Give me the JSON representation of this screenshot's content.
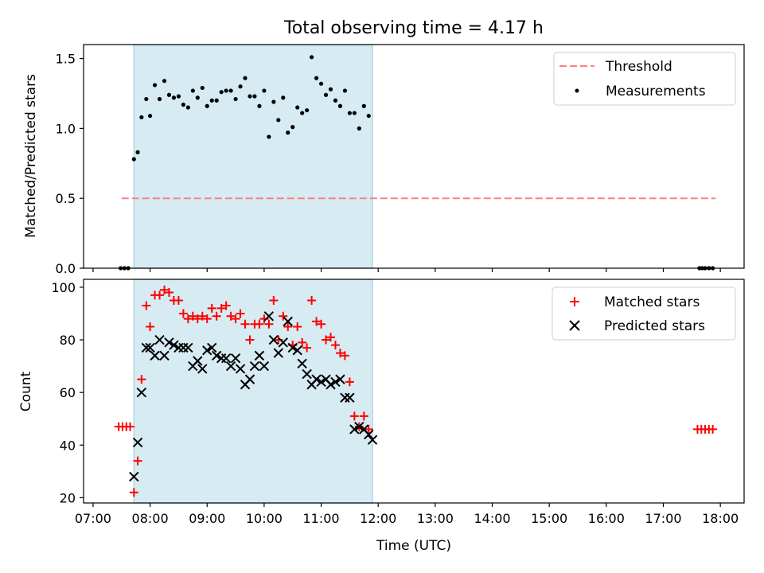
{
  "figure_title": "Total observing time = 4.17 h",
  "chart_data": [
    {
      "type": "scatter",
      "panel": "top",
      "xlim": [
        "06:50",
        "18:25"
      ],
      "ylim": [
        0,
        1.6
      ],
      "ylabel": "Matched/Predicted stars",
      "yticks": [
        "0.0",
        "0.5",
        "1.0",
        "1.5"
      ],
      "yticks_values": [
        0,
        0.5,
        1.0,
        1.5
      ],
      "shaded_region": {
        "start": "07:43",
        "end": "11:54",
        "color": "#add8e6"
      },
      "legend_position": "top-right",
      "threshold": {
        "name": "Threshold",
        "value": 0.5,
        "x_start": "07:30",
        "x_end": "17:55",
        "color": "#ff7f7f"
      },
      "measurements": {
        "name": "Measurements",
        "x": [
          "07:29",
          "07:33",
          "07:37",
          "07:43",
          "07:47",
          "07:51",
          "07:56",
          "08:00",
          "08:05",
          "08:10",
          "08:15",
          "08:20",
          "08:25",
          "08:30",
          "08:35",
          "08:40",
          "08:45",
          "08:50",
          "08:55",
          "09:00",
          "09:05",
          "09:10",
          "09:15",
          "09:20",
          "09:25",
          "09:30",
          "09:35",
          "09:40",
          "09:45",
          "09:50",
          "09:55",
          "10:00",
          "10:05",
          "10:10",
          "10:15",
          "10:20",
          "10:25",
          "10:30",
          "10:35",
          "10:40",
          "10:45",
          "10:50",
          "10:55",
          "11:00",
          "11:05",
          "11:10",
          "11:15",
          "11:20",
          "11:25",
          "11:30",
          "11:35",
          "11:40",
          "11:45",
          "11:50",
          "17:38",
          "17:41",
          "17:44",
          "17:48",
          "17:52"
        ],
        "y": [
          0,
          0,
          0,
          0.78,
          0.83,
          1.08,
          1.21,
          1.09,
          1.31,
          1.21,
          1.34,
          1.24,
          1.22,
          1.23,
          1.17,
          1.15,
          1.27,
          1.22,
          1.29,
          1.16,
          1.2,
          1.2,
          1.26,
          1.27,
          1.27,
          1.21,
          1.3,
          1.36,
          1.23,
          1.23,
          1.16,
          1.27,
          0.94,
          1.19,
          1.06,
          1.22,
          0.97,
          1.01,
          1.15,
          1.11,
          1.13,
          1.51,
          1.36,
          1.32,
          1.24,
          1.28,
          1.2,
          1.16,
          1.27,
          1.11,
          1.11,
          1.0,
          1.16,
          1.09,
          0,
          0,
          0,
          0,
          0
        ],
        "color": "#000000"
      }
    },
    {
      "type": "scatter",
      "panel": "bottom",
      "xlim": [
        "06:50",
        "18:25"
      ],
      "ylim": [
        18,
        103
      ],
      "xlabel": "Time (UTC)",
      "ylabel": "Count",
      "xticks": [
        "07:00",
        "08:00",
        "09:00",
        "10:00",
        "11:00",
        "12:00",
        "13:00",
        "14:00",
        "15:00",
        "16:00",
        "17:00",
        "18:00"
      ],
      "yticks": [
        "20",
        "40",
        "60",
        "80",
        "100"
      ],
      "yticks_values": [
        20,
        40,
        60,
        80,
        100
      ],
      "shaded_region": {
        "start": "07:43",
        "end": "11:54",
        "color": "#add8e6"
      },
      "legend_position": "top-right",
      "series": [
        {
          "name": "Matched stars",
          "marker": "+",
          "color": "#ff0000",
          "x": [
            "07:27",
            "07:31",
            "07:35",
            "07:39",
            "07:43",
            "07:47",
            "07:51",
            "07:56",
            "08:00",
            "08:05",
            "08:10",
            "08:15",
            "08:20",
            "08:25",
            "08:30",
            "08:35",
            "08:40",
            "08:45",
            "08:50",
            "08:55",
            "09:00",
            "09:05",
            "09:10",
            "09:15",
            "09:20",
            "09:25",
            "09:30",
            "09:35",
            "09:40",
            "09:45",
            "09:50",
            "09:55",
            "10:00",
            "10:05",
            "10:10",
            "10:15",
            "10:20",
            "10:25",
            "10:30",
            "10:35",
            "10:40",
            "10:45",
            "10:50",
            "10:55",
            "11:00",
            "11:05",
            "11:10",
            "11:15",
            "11:20",
            "11:25",
            "11:30",
            "11:35",
            "11:40",
            "11:45",
            "11:50",
            "17:36",
            "17:40",
            "17:44",
            "17:48",
            "17:52"
          ],
          "y": [
            47,
            47,
            47,
            47,
            22,
            34,
            65,
            93,
            85,
            97,
            97,
            99,
            98,
            95,
            95,
            90,
            88,
            89,
            88,
            89,
            88,
            92,
            89,
            92,
            93,
            89,
            88,
            90,
            86,
            80,
            86,
            86,
            88,
            86,
            95,
            80,
            89,
            85,
            78,
            85,
            79,
            77,
            95,
            87,
            86,
            80,
            81,
            78,
            75,
            74,
            64,
            51,
            47,
            51,
            46,
            46,
            46,
            46,
            46,
            46
          ]
        },
        {
          "name": "Predicted stars",
          "marker": "x",
          "color": "#000000",
          "x": [
            "07:43",
            "07:47",
            "07:51",
            "07:56",
            "08:00",
            "08:05",
            "08:10",
            "08:15",
            "08:20",
            "08:25",
            "08:30",
            "08:35",
            "08:40",
            "08:45",
            "08:50",
            "08:55",
            "09:00",
            "09:05",
            "09:10",
            "09:15",
            "09:20",
            "09:25",
            "09:30",
            "09:35",
            "09:40",
            "09:45",
            "09:50",
            "09:55",
            "10:00",
            "10:05",
            "10:10",
            "10:15",
            "10:20",
            "10:25",
            "10:30",
            "10:35",
            "10:40",
            "10:45",
            "10:50",
            "10:55",
            "11:00",
            "11:05",
            "11:10",
            "11:15",
            "11:20",
            "11:25",
            "11:30",
            "11:35",
            "11:40",
            "11:45",
            "11:50",
            "11:54"
          ],
          "y": [
            28,
            41,
            60,
            77,
            77,
            74,
            80,
            74,
            79,
            78,
            77,
            77,
            77,
            70,
            72,
            69,
            76,
            77,
            74,
            73,
            73,
            70,
            73,
            69,
            63,
            65,
            70,
            74,
            70,
            89,
            80,
            75,
            79,
            87,
            77,
            76,
            71,
            67,
            63,
            65,
            64,
            65,
            63,
            64,
            65,
            58,
            58,
            46,
            47,
            46,
            44,
            42
          ]
        }
      ]
    }
  ]
}
